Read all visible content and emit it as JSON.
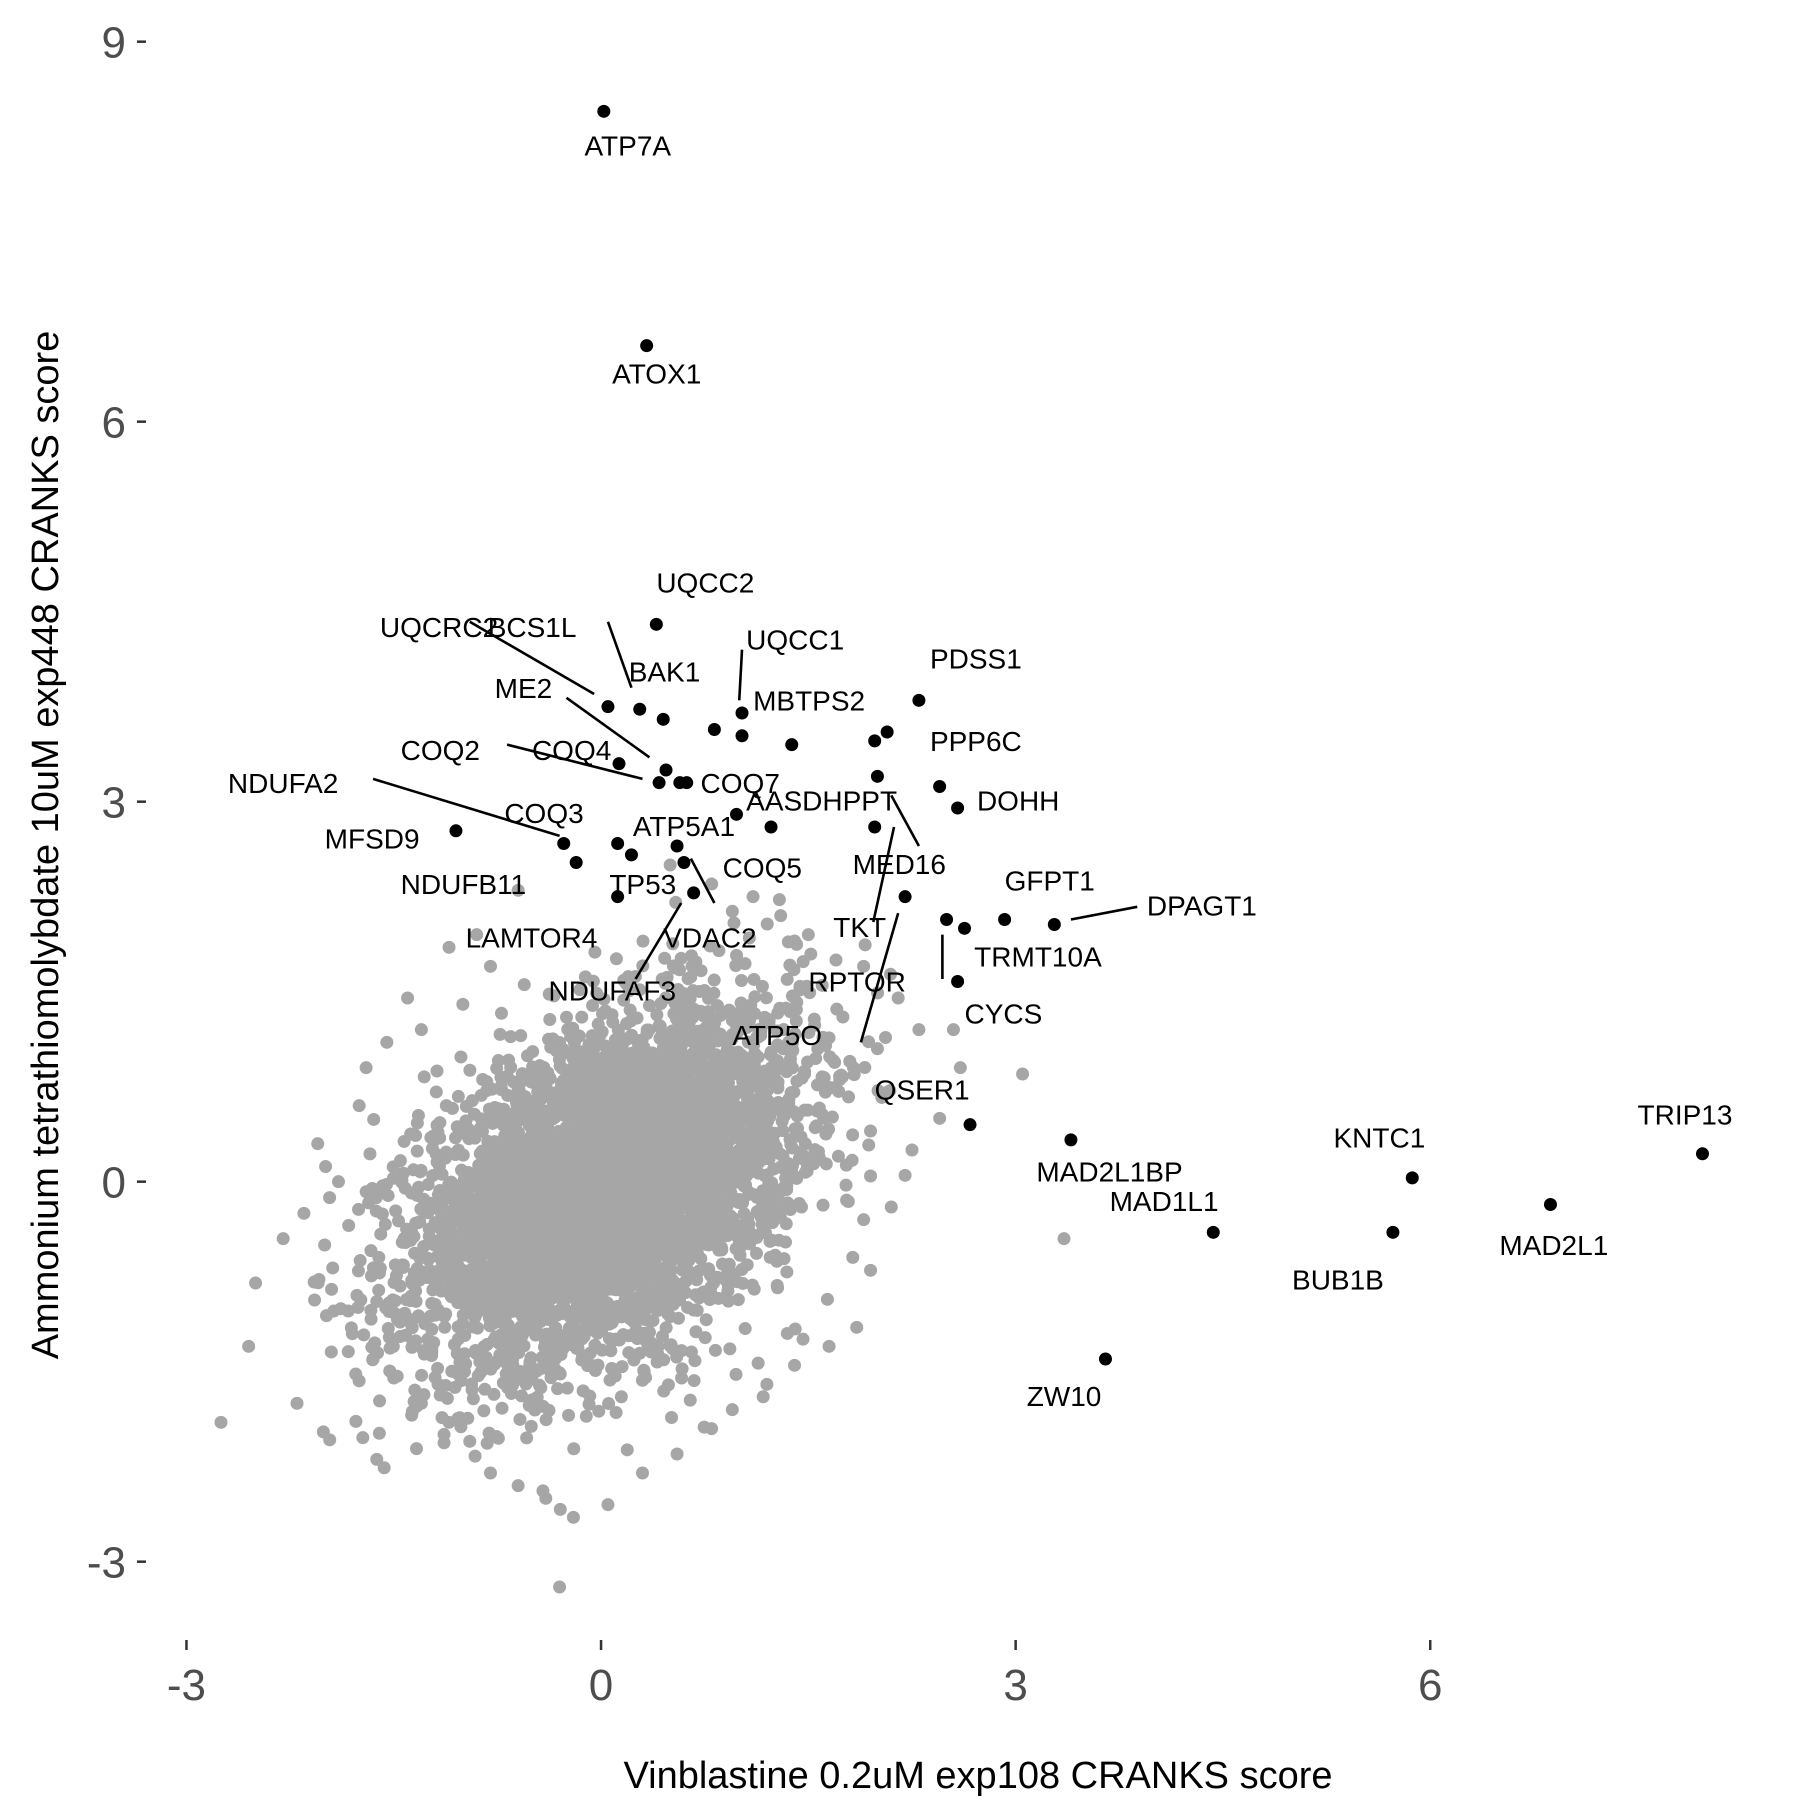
{
  "chart_data": {
    "type": "scatter",
    "title": "",
    "xlabel": "Vinblastine 0.2uM exp108 CRANKS score",
    "ylabel": "Ammonium tetrathiomolybdate 10uM exp448 CRANKS score",
    "xlim": [
      -3.3,
      8.35
    ],
    "ylim": [
      -3.5,
      9.25
    ],
    "xticks": [
      -3,
      0,
      3,
      6
    ],
    "yticks": [
      -3,
      0,
      3,
      6,
      9
    ],
    "xtick_labels": [
      "-3",
      "0",
      "3",
      "6"
    ],
    "ytick_labels": [
      "-3",
      "0",
      "3",
      "6",
      "9"
    ],
    "grid": false,
    "colors": {
      "background_points": "#a6a6a6",
      "highlight_points": "#000000"
    },
    "series": [
      {
        "role": "background",
        "points": [
          [
            -2.75,
            -1.9
          ],
          [
            -2.2,
            -1.75
          ],
          [
            -2.55,
            -1.3
          ],
          [
            -2.5,
            -0.8
          ],
          [
            -2.3,
            -0.45
          ],
          [
            -2.15,
            -0.25
          ],
          [
            -2.0,
            -0.5
          ],
          [
            -1.95,
            -0.85
          ],
          [
            -1.9,
            0.0
          ],
          [
            -2.05,
            0.3
          ],
          [
            -1.75,
            0.6
          ],
          [
            -1.7,
            0.9
          ],
          [
            -1.55,
            1.1
          ],
          [
            -1.8,
            -1.2
          ],
          [
            -1.65,
            -1.4
          ],
          [
            -1.5,
            -1.55
          ],
          [
            -1.3,
            -1.75
          ],
          [
            -1.1,
            -1.9
          ],
          [
            -0.95,
            -2.05
          ],
          [
            -0.8,
            -2.3
          ],
          [
            -0.6,
            -2.4
          ],
          [
            -0.4,
            -2.5
          ],
          [
            -0.2,
            -2.65
          ],
          [
            0.05,
            -2.55
          ],
          [
            -0.3,
            -3.2
          ],
          [
            0.3,
            -2.3
          ],
          [
            0.55,
            -2.15
          ],
          [
            0.8,
            -1.95
          ],
          [
            0.95,
            -1.8
          ],
          [
            1.2,
            -1.6
          ],
          [
            1.4,
            -1.45
          ],
          [
            1.65,
            -1.3
          ],
          [
            1.85,
            -1.15
          ],
          [
            1.95,
            -0.7
          ],
          [
            1.9,
            -0.3
          ],
          [
            2.1,
            -0.2
          ],
          [
            1.95,
            0.4
          ],
          [
            2.05,
            0.7
          ],
          [
            1.8,
            0.95
          ],
          [
            2.0,
            1.05
          ],
          [
            1.75,
            1.3
          ],
          [
            1.6,
            1.55
          ],
          [
            1.7,
            1.75
          ],
          [
            1.5,
            1.95
          ],
          [
            1.3,
            2.1
          ],
          [
            1.1,
            2.25
          ],
          [
            0.8,
            2.35
          ],
          [
            0.5,
            2.5
          ],
          [
            -0.6,
            2.3
          ],
          [
            -0.9,
            1.95
          ],
          [
            -1.1,
            1.85
          ],
          [
            -1.4,
            1.45
          ],
          [
            2.3,
            1.2
          ],
          [
            2.55,
            1.2
          ],
          [
            2.6,
            0.9
          ],
          [
            3.05,
            0.85
          ],
          [
            2.45,
            0.5
          ],
          [
            2.25,
            0.25
          ],
          [
            3.35,
            -0.45
          ],
          [
            2.2,
            0.05
          ],
          [
            -1.0,
            1.4
          ],
          [
            -0.8,
            1.7
          ],
          [
            -1.3,
            1.2
          ],
          [
            1.9,
            1.7
          ],
          [
            2.15,
            1.45
          ],
          [
            1.4,
            1.9
          ]
        ]
      },
      {
        "role": "highlighted",
        "points": [
          {
            "x": 0.02,
            "y": 8.45,
            "label": "ATP7A"
          },
          {
            "x": 0.33,
            "y": 6.6,
            "label": "ATOX1"
          },
          {
            "x": 0.4,
            "y": 4.4,
            "label": "UQCC2"
          },
          {
            "x": 0.05,
            "y": 3.75,
            "label": "UQCRC2"
          },
          {
            "x": 0.28,
            "y": 3.73,
            "label": "BCS1L"
          },
          {
            "x": 0.45,
            "y": 3.65,
            "label": "BAK1"
          },
          {
            "x": 1.02,
            "y": 3.7,
            "label": "UQCC1"
          },
          {
            "x": 0.82,
            "y": 3.57,
            "label": "MBTPS2"
          },
          {
            "x": 1.02,
            "y": 3.52,
            "label": "MBTPS2"
          },
          {
            "x": 2.3,
            "y": 3.8,
            "label": "PDSS1"
          },
          {
            "x": 2.07,
            "y": 3.55,
            "label": "PPP6C"
          },
          {
            "x": 1.98,
            "y": 3.48,
            "label": "PPP6C"
          },
          {
            "x": 1.38,
            "y": 3.45,
            "label": "COQ7"
          },
          {
            "x": 0.13,
            "y": 3.3,
            "label": "COQ4"
          },
          {
            "x": 0.47,
            "y": 3.25,
            "label": "ME2"
          },
          {
            "x": 0.57,
            "y": 3.15,
            "label": "COQ2"
          },
          {
            "x": 0.62,
            "y": 3.15,
            "label": "COQ7"
          },
          {
            "x": 0.42,
            "y": 3.15,
            "label": "COQ4"
          },
          {
            "x": 2.0,
            "y": 3.2,
            "label": "AASDHPPT"
          },
          {
            "x": 2.45,
            "y": 3.12,
            "label": "MED16"
          },
          {
            "x": 2.58,
            "y": 2.95,
            "label": "DOHH"
          },
          {
            "x": 0.98,
            "y": 2.9,
            "label": "ATP5A1"
          },
          {
            "x": 1.23,
            "y": 2.8,
            "label": "ATP5A1"
          },
          {
            "x": 1.98,
            "y": 2.8,
            "label": "TKT"
          },
          {
            "x": -1.05,
            "y": 2.77,
            "label": "MFSD9"
          },
          {
            "x": -0.27,
            "y": 2.67,
            "label": "NDUFA2"
          },
          {
            "x": 0.12,
            "y": 2.67,
            "label": "COQ3"
          },
          {
            "x": 0.55,
            "y": 2.65,
            "label": "VDAC2"
          },
          {
            "x": 0.22,
            "y": 2.58,
            "label": "COQ3"
          },
          {
            "x": 0.6,
            "y": 2.52,
            "label": "TP53"
          },
          {
            "x": -0.18,
            "y": 2.52,
            "label": "NDUFB11"
          },
          {
            "x": 2.2,
            "y": 2.25,
            "label": "ATP5O"
          },
          {
            "x": 0.12,
            "y": 2.25,
            "label": "NDUFB11"
          },
          {
            "x": 0.67,
            "y": 2.28,
            "label": "NDUFAF3"
          },
          {
            "x": 2.5,
            "y": 2.07,
            "label": "RPTOR"
          },
          {
            "x": 2.63,
            "y": 2.0,
            "label": "TRMT10A"
          },
          {
            "x": 2.92,
            "y": 2.07,
            "label": "GFPT1"
          },
          {
            "x": 3.28,
            "y": 2.03,
            "label": "DPAGT1"
          },
          {
            "x": 2.58,
            "y": 1.58,
            "label": "CYCS"
          },
          {
            "x": 2.67,
            "y": 0.45,
            "label": "QSER1"
          },
          {
            "x": 3.4,
            "y": 0.33,
            "label": "MAD2L1BP"
          },
          {
            "x": 4.43,
            "y": -0.4,
            "label": "MAD1L1"
          },
          {
            "x": 5.87,
            "y": 0.03,
            "label": "KNTC1"
          },
          {
            "x": 5.73,
            "y": -0.4,
            "label": "BUB1B"
          },
          {
            "x": 6.87,
            "y": -0.18,
            "label": "MAD2L1"
          },
          {
            "x": 7.97,
            "y": 0.22,
            "label": "TRIP13"
          },
          {
            "x": 3.65,
            "y": -1.4,
            "label": "ZW10"
          }
        ]
      }
    ],
    "labels": [
      {
        "text": "ATP7A",
        "x": -0.12,
        "y": 8.1
      },
      {
        "text": "ATOX1",
        "x": 0.08,
        "y": 6.3
      },
      {
        "text": "UQCC2",
        "x": 0.4,
        "y": 4.65
      },
      {
        "text": "UQCRC2",
        "x": -1.6,
        "y": 4.3
      },
      {
        "text": "BCS1L",
        "x": -0.82,
        "y": 4.3
      },
      {
        "text": "BAK1",
        "x": 0.2,
        "y": 3.95
      },
      {
        "text": "UQCC1",
        "x": 1.05,
        "y": 4.2
      },
      {
        "text": "MBTPS2",
        "x": 1.1,
        "y": 3.72
      },
      {
        "text": "PDSS1",
        "x": 2.38,
        "y": 4.05
      },
      {
        "text": "ME2",
        "x": -0.77,
        "y": 3.82
      },
      {
        "text": "PPP6C",
        "x": 2.38,
        "y": 3.4
      },
      {
        "text": "COQ2",
        "x": -1.45,
        "y": 3.33
      },
      {
        "text": "COQ4",
        "x": -0.5,
        "y": 3.33
      },
      {
        "text": "COQ7",
        "x": 0.72,
        "y": 3.07
      },
      {
        "text": "NDUFA2",
        "x": -2.7,
        "y": 3.07
      },
      {
        "text": "AASDHPPT",
        "x": 1.05,
        "y": 2.93
      },
      {
        "text": "DOHH",
        "x": 2.72,
        "y": 2.93
      },
      {
        "text": "COQ3",
        "x": -0.7,
        "y": 2.83
      },
      {
        "text": "ATP5A1",
        "x": 0.23,
        "y": 2.73
      },
      {
        "text": "MFSD9",
        "x": -2.0,
        "y": 2.63
      },
      {
        "text": "MED16",
        "x": 1.82,
        "y": 2.43
      },
      {
        "text": "NDUFB11",
        "x": -1.45,
        "y": 2.27
      },
      {
        "text": "TP53",
        "x": 0.06,
        "y": 2.27
      },
      {
        "text": "COQ5",
        "x": 0.88,
        "y": 2.4
      },
      {
        "text": "GFPT1",
        "x": 2.92,
        "y": 2.3
      },
      {
        "text": "DPAGT1",
        "x": 3.95,
        "y": 2.1
      },
      {
        "text": "TKT",
        "x": 1.68,
        "y": 1.93
      },
      {
        "text": "LAMTOR4",
        "x": -0.98,
        "y": 1.85
      },
      {
        "text": "VDAC2",
        "x": 0.45,
        "y": 1.85
      },
      {
        "text": "TRMT10A",
        "x": 2.7,
        "y": 1.7
      },
      {
        "text": "RPTOR",
        "x": 1.5,
        "y": 1.5
      },
      {
        "text": "NDUFAF3",
        "x": -0.38,
        "y": 1.43
      },
      {
        "text": "CYCS",
        "x": 2.63,
        "y": 1.25
      },
      {
        "text": "ATP5O",
        "x": 0.95,
        "y": 1.08
      },
      {
        "text": "QSER1",
        "x": 1.98,
        "y": 0.65
      },
      {
        "text": "TRIP13",
        "x": 7.5,
        "y": 0.45
      },
      {
        "text": "KNTC1",
        "x": 5.3,
        "y": 0.27
      },
      {
        "text": "MAD2L1BP",
        "x": 3.15,
        "y": 0.0
      },
      {
        "text": "MAD1L1",
        "x": 3.68,
        "y": -0.23
      },
      {
        "text": "MAD2L1",
        "x": 6.5,
        "y": -0.58
      },
      {
        "text": "BUB1B",
        "x": 5.0,
        "y": -0.85
      },
      {
        "text": "ZW10",
        "x": 3.08,
        "y": -1.77
      }
    ],
    "connectors": [
      {
        "from": [
          -0.95,
          4.42
        ],
        "to": [
          -0.05,
          3.85
        ]
      },
      {
        "from": [
          0.05,
          4.42
        ],
        "to": [
          0.22,
          3.9
        ]
      },
      {
        "from": [
          1.02,
          4.2
        ],
        "to": [
          1.0,
          3.8
        ]
      },
      {
        "from": [
          -0.25,
          3.82
        ],
        "to": [
          0.35,
          3.35
        ]
      },
      {
        "from": [
          -0.68,
          3.45
        ],
        "to": [
          0.3,
          3.18
        ]
      },
      {
        "from": [
          -1.65,
          3.18
        ],
        "to": [
          -0.3,
          2.73
        ]
      },
      {
        "from": [
          2.1,
          3.05
        ],
        "to": [
          2.3,
          2.65
        ]
      },
      {
        "from": [
          0.65,
          2.55
        ],
        "to": [
          0.82,
          2.2
        ]
      },
      {
        "from": [
          0.58,
          2.2
        ],
        "to": [
          0.25,
          1.6
        ]
      },
      {
        "from": [
          2.12,
          2.8
        ],
        "to": [
          1.97,
          2.05
        ]
      },
      {
        "from": [
          2.15,
          2.12
        ],
        "to": [
          1.88,
          1.1
        ]
      },
      {
        "from": [
          2.47,
          1.95
        ],
        "to": [
          2.47,
          1.6
        ]
      },
      {
        "from": [
          3.4,
          2.07
        ],
        "to": [
          3.88,
          2.17
        ]
      }
    ]
  }
}
